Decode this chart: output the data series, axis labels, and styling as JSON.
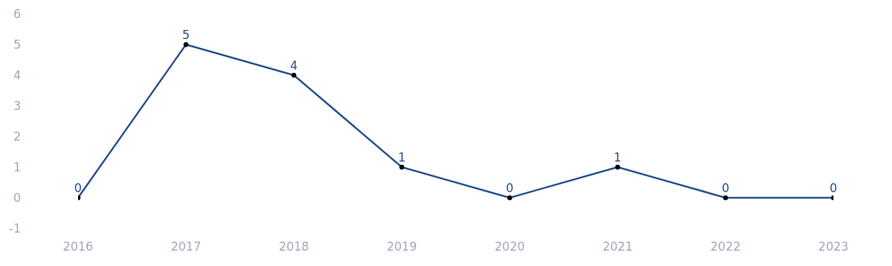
{
  "chart_data": {
    "type": "line",
    "categories": [
      "2016",
      "2017",
      "2018",
      "2019",
      "2020",
      "2021",
      "2022",
      "2023"
    ],
    "series": [
      {
        "color": "#1f4a87",
        "values": [
          0,
          5,
          4,
          1,
          0,
          1,
          0,
          0
        ]
      }
    ],
    "ylim": [
      -1,
      6
    ],
    "yticks": [
      -1,
      0,
      1,
      2,
      3,
      4,
      5,
      6
    ],
    "marker": "circle",
    "line_style": "solid",
    "data_labels": true
  }
}
